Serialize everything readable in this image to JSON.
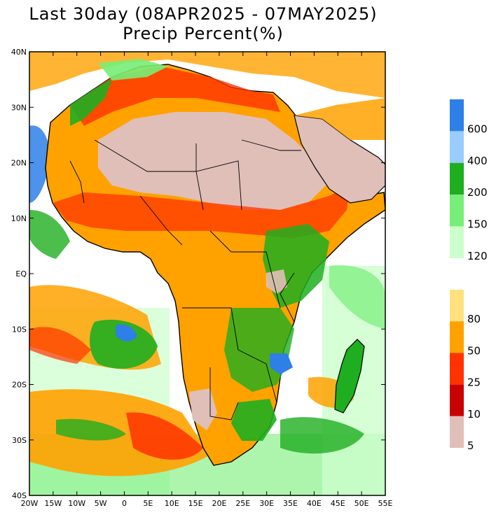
{
  "title_line1": "Last 30day (08APR2025 - 07MAY2025)",
  "title_line2": "Precip Percent(%)",
  "y_axis_labels": [
    "40N",
    "30N",
    "20N",
    "10N",
    "EQ",
    "10S",
    "20S",
    "30S",
    "40S"
  ],
  "x_axis_labels": [
    "20W",
    "15W",
    "10W",
    "5W",
    "0",
    "5E",
    "10E",
    "15E",
    "20E",
    "25E",
    "30E",
    "35E",
    "40E",
    "45E",
    "50E",
    "55E"
  ],
  "colorbar_upper": {
    "colors": [
      "#2e7fe8",
      "#99ccff",
      "#1fae1f",
      "#77ee77",
      "#ccffcc"
    ],
    "labels": [
      "600",
      "400",
      "200",
      "150",
      "120"
    ]
  },
  "colorbar_lower": {
    "colors": [
      "#ffe180",
      "#ffa200",
      "#ff3300",
      "#c80000",
      "#e0bfb8"
    ],
    "labels": [
      "80",
      "50",
      "25",
      "10",
      "5"
    ]
  },
  "colors": {
    "ocean_normal": "#ffffff",
    "desert": "#e0bfb8",
    "borders": "#000000",
    "sub_borders": "#999999"
  }
}
